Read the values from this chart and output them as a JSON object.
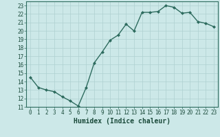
{
  "x": [
    0,
    1,
    2,
    3,
    4,
    5,
    6,
    7,
    8,
    9,
    10,
    11,
    12,
    13,
    14,
    15,
    16,
    17,
    18,
    19,
    20,
    21,
    22,
    23
  ],
  "y": [
    14.5,
    13.3,
    13.0,
    12.8,
    12.2,
    11.7,
    11.1,
    13.3,
    16.2,
    17.5,
    18.9,
    19.5,
    20.8,
    20.0,
    22.2,
    22.2,
    22.3,
    23.0,
    22.8,
    22.1,
    22.2,
    21.1,
    20.9,
    20.5
  ],
  "line_color": "#2d6b5e",
  "marker": "D",
  "marker_size": 2.0,
  "background_color": "#cce8e8",
  "grid_color": "#aed0d0",
  "xlabel": "Humidex (Indice chaleur)",
  "ylim": [
    11,
    23.5
  ],
  "xlim": [
    -0.5,
    23.5
  ],
  "yticks": [
    11,
    12,
    13,
    14,
    15,
    16,
    17,
    18,
    19,
    20,
    21,
    22,
    23
  ],
  "xticks": [
    0,
    1,
    2,
    3,
    4,
    5,
    6,
    7,
    8,
    9,
    10,
    11,
    12,
    13,
    14,
    15,
    16,
    17,
    18,
    19,
    20,
    21,
    22,
    23
  ],
  "tick_fontsize": 5.5,
  "xlabel_fontsize": 7,
  "line_width": 1.0
}
